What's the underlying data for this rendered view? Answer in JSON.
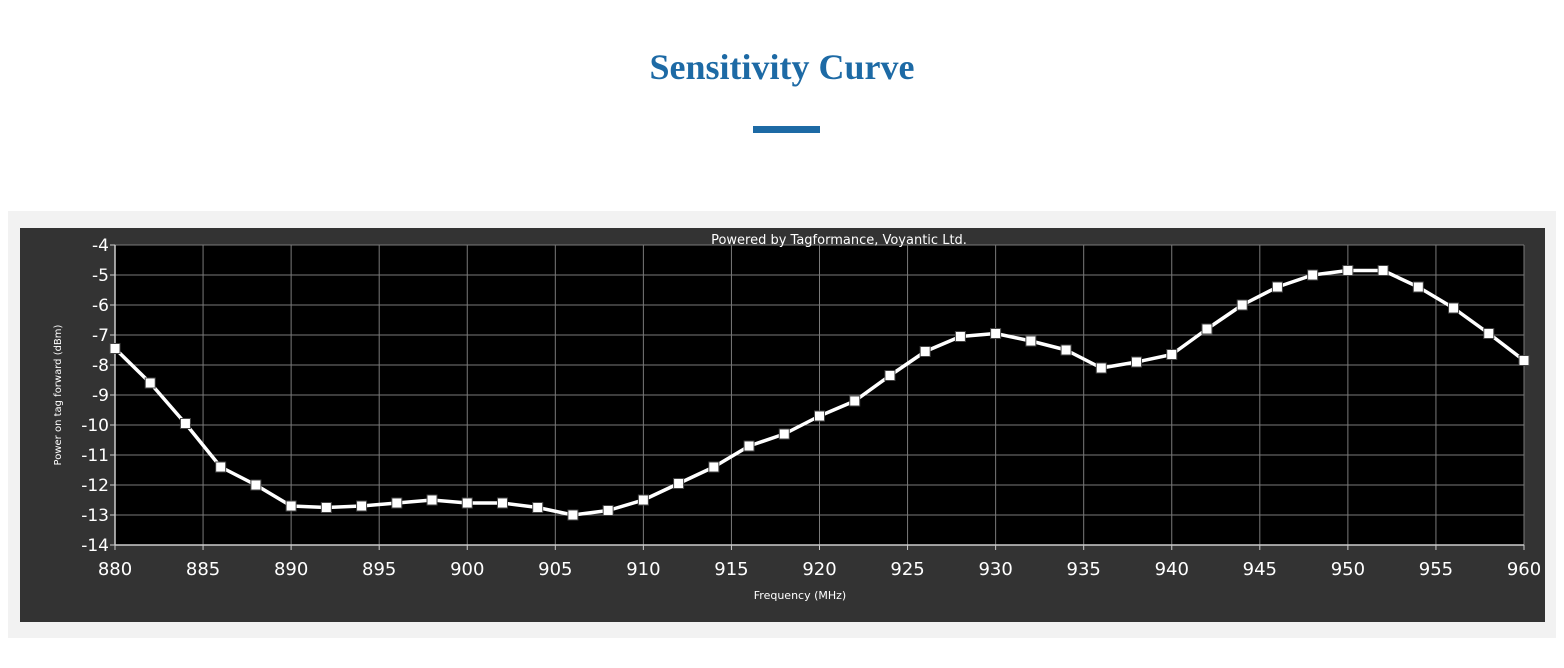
{
  "header": {
    "title": "Sensitivity Curve"
  },
  "colors": {
    "title": "#1d6aa5",
    "panel_bg": "#333333",
    "plot_bg": "#000000",
    "grid": "#7a7a7a",
    "line": "#ffffff"
  },
  "chart_data": {
    "type": "line",
    "annotation": "Powered by Tagformance, Voyantic Ltd.",
    "xlabel": "Frequency (MHz)",
    "ylabel": "Power on tag forward (dBm)",
    "xlim": [
      880,
      960
    ],
    "ylim": [
      -14,
      -4
    ],
    "xticks": [
      880,
      885,
      890,
      895,
      900,
      905,
      910,
      915,
      920,
      925,
      930,
      935,
      940,
      945,
      950,
      955,
      960
    ],
    "yticks": [
      -4,
      -5,
      -6,
      -7,
      -8,
      -9,
      -10,
      -11,
      -12,
      -13,
      -14
    ],
    "grid": true,
    "legend": "none",
    "series": [
      {
        "x": [
          880,
          882,
          884,
          886,
          888,
          890,
          892,
          894,
          896,
          898,
          900,
          902,
          904,
          906,
          908,
          910,
          912,
          914,
          916,
          918,
          920,
          922,
          924,
          926,
          928,
          930,
          932,
          934,
          936,
          938,
          940,
          942,
          944,
          946,
          948,
          950,
          952,
          954,
          956,
          958,
          960
        ],
        "y": [
          -7.45,
          -8.6,
          -9.95,
          -11.4,
          -12.0,
          -12.7,
          -12.75,
          -12.7,
          -12.6,
          -12.5,
          -12.6,
          -12.6,
          -12.75,
          -13.0,
          -12.85,
          -12.5,
          -11.95,
          -11.4,
          -10.7,
          -10.3,
          -9.7,
          -9.2,
          -8.35,
          -7.55,
          -7.05,
          -6.95,
          -7.2,
          -7.5,
          -8.1,
          -7.9,
          -7.65,
          -6.8,
          -6.0,
          -5.4,
          -5.0,
          -4.85,
          -4.85,
          -5.4,
          -6.1,
          -6.95,
          -7.85
        ]
      }
    ]
  }
}
